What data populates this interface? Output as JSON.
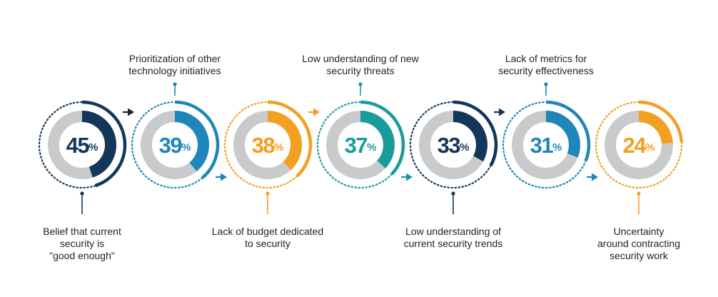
{
  "chart_data": {
    "type": "pie",
    "percent_sign": "%",
    "items": [
      {
        "value": 45,
        "label_lines": [
          "Belief that current",
          "security is",
          "\"good enough\""
        ],
        "label_position": "below",
        "color": "#13365a"
      },
      {
        "value": 39,
        "label_lines": [
          "Prioritization of other",
          "technology initiatives"
        ],
        "label_position": "above",
        "color": "#1f86b9"
      },
      {
        "value": 38,
        "label_lines": [
          "Lack of budget dedicated",
          "to security"
        ],
        "label_position": "below",
        "color": "#f2a022"
      },
      {
        "value": 37,
        "label_lines": [
          "Low understanding of new",
          "security threats"
        ],
        "label_position": "above",
        "color": "#1a9b9c"
      },
      {
        "value": 33,
        "label_lines": [
          "Low understanding of",
          "current security trends"
        ],
        "label_position": "below",
        "color": "#13365a"
      },
      {
        "value": 31,
        "label_lines": [
          "Lack of metrics for",
          "security effectiveness"
        ],
        "label_position": "above",
        "color": "#1f86b9"
      },
      {
        "value": 24,
        "label_lines": [
          "Uncertainty",
          "around contracting",
          "security work"
        ],
        "label_position": "below",
        "color": "#f2a022"
      }
    ],
    "track_color": "#c9cacc",
    "arrow_color_after": [
      "#231f20",
      "#1f86b9",
      "#f2a022",
      "#1a9b9c",
      "#13365a",
      "#1f86b9"
    ]
  }
}
